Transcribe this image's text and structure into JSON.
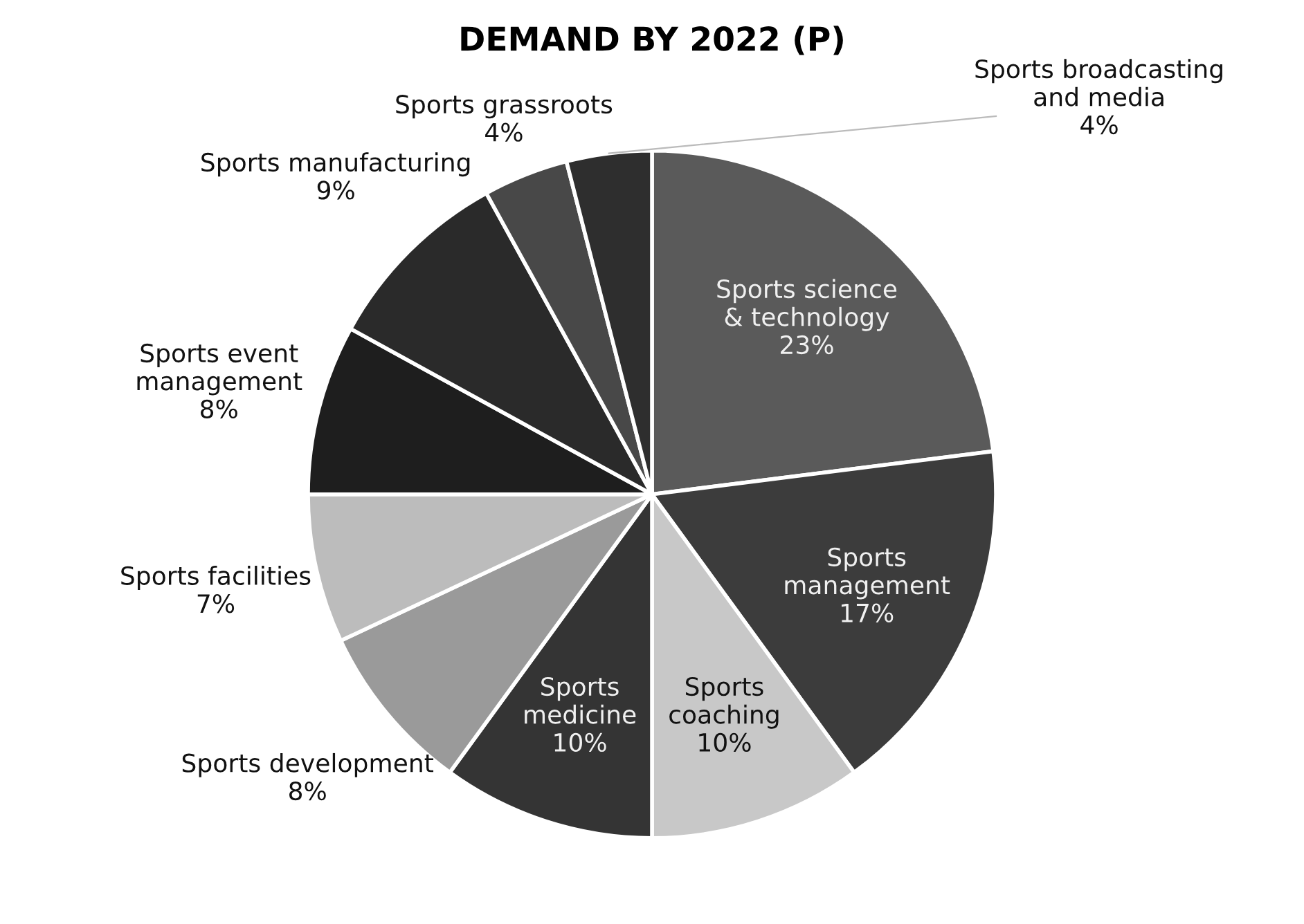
{
  "chart_data": {
    "type": "pie",
    "title": "DEMAND BY 2022 (P)",
    "categories": [
      "Sports science & technology",
      "Sports management",
      "Sports coaching",
      "Sports medicine",
      "Sports development",
      "Sports facilities",
      "Sports event management",
      "Sports manufacturing",
      "Sports grassroots",
      "Sports broadcasting and media"
    ],
    "values": [
      23,
      17,
      10,
      10,
      8,
      7,
      8,
      9,
      4,
      4
    ],
    "colors": [
      "#5a5a5a",
      "#3c3c3c",
      "#c8c8c8",
      "#343434",
      "#9a9a9a",
      "#bcbcbc",
      "#1e1e1e",
      "#2a2a2a",
      "#484848",
      "#2e2e2e"
    ],
    "value_labels": [
      "23%",
      "17%",
      "10%",
      "10%",
      "8%",
      "7%",
      "8%",
      "9%",
      "4%",
      "4%"
    ],
    "legend": false
  }
}
